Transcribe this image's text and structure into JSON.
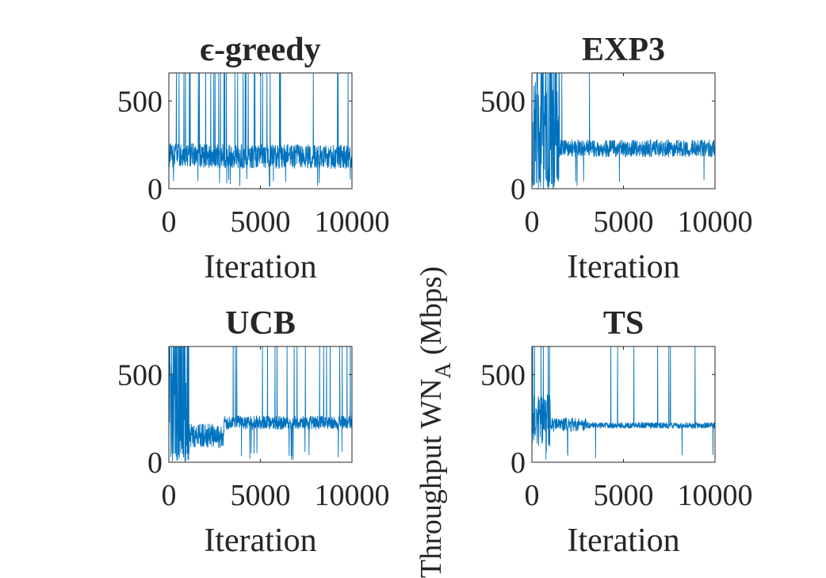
{
  "figure": {
    "ylabel": "Throughput WN",
    "ylabel_sub": "A",
    "ylabel_unit": " (Mbps)",
    "line_color": "#0072BD"
  },
  "chart_data": [
    {
      "type": "line",
      "title": "ϵ-greedy",
      "xlabel": "Iteration",
      "xlim": [
        0,
        10000
      ],
      "ylim": [
        0,
        660
      ],
      "xticks": [
        "0",
        "5000",
        "10000"
      ],
      "yticks": [
        "0",
        "500"
      ],
      "baseline": 180,
      "noise": 70,
      "spike_prob": 0.04,
      "segments": [
        {
          "x": [
            0,
            10000
          ],
          "y": [
            190,
            180
          ]
        }
      ]
    },
    {
      "type": "line",
      "title": "EXP3",
      "xlabel": "Iteration",
      "xlim": [
        0,
        10000
      ],
      "ylim": [
        0,
        660
      ],
      "xticks": [
        "0",
        "5000",
        "10000"
      ],
      "yticks": [
        "0",
        "500"
      ],
      "baseline": 230,
      "noise": 50,
      "spike_prob": 0.006,
      "segments": [
        {
          "x": [
            0,
            1500
          ],
          "y": [
            300,
            300
          ],
          "noise": 330,
          "spike_prob": 0.25
        },
        {
          "x": [
            1500,
            10000
          ],
          "y": [
            230,
            230
          ]
        }
      ]
    },
    {
      "type": "line",
      "title": "UCB",
      "xlabel": "Iteration",
      "xlim": [
        0,
        10000
      ],
      "ylim": [
        0,
        660
      ],
      "xticks": [
        "0",
        "5000",
        "10000"
      ],
      "yticks": [
        "0",
        "500"
      ],
      "baseline": 225,
      "noise": 40,
      "spike_prob": 0.03,
      "segments": [
        {
          "x": [
            0,
            1100
          ],
          "y": [
            300,
            300
          ],
          "noise": 260,
          "spike_prob": 0.3
        },
        {
          "x": [
            1100,
            3000
          ],
          "y": [
            150,
            150
          ],
          "noise": 70,
          "spike_prob": 0.0
        },
        {
          "x": [
            3000,
            10000
          ],
          "y": [
            225,
            225
          ]
        }
      ]
    },
    {
      "type": "line",
      "title": "TS",
      "xlabel": "Iteration",
      "xlim": [
        0,
        10000
      ],
      "ylim": [
        0,
        660
      ],
      "xticks": [
        "0",
        "5000",
        "10000"
      ],
      "yticks": [
        "0",
        "500"
      ],
      "baseline": 210,
      "noise": 18,
      "spike_prob": 0.006,
      "segments": [
        {
          "x": [
            0,
            1000
          ],
          "y": [
            240,
            240
          ],
          "noise": 150,
          "spike_prob": 0.06
        },
        {
          "x": [
            1000,
            3000
          ],
          "y": [
            215,
            215
          ],
          "noise": 40,
          "spike_prob": 0.01
        },
        {
          "x": [
            3000,
            10000
          ],
          "y": [
            210,
            210
          ]
        }
      ]
    }
  ]
}
